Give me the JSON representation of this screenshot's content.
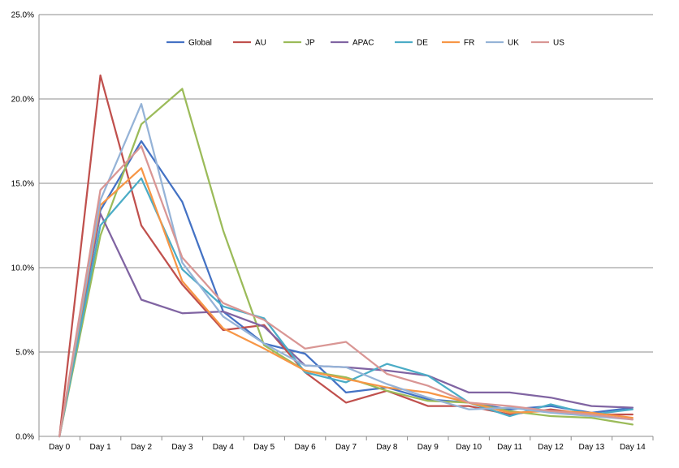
{
  "chart_data": {
    "type": "line",
    "title": "",
    "xlabel": "",
    "ylabel": "",
    "categories": [
      "Day 0",
      "Day 1",
      "Day 2",
      "Day 3",
      "Day 4",
      "Day 5",
      "Day 6",
      "Day 7",
      "Day 8",
      "Day 9",
      "Day 10",
      "Day 11",
      "Day 12",
      "Day 13",
      "Day 14"
    ],
    "y_ticks": [
      "0.0%",
      "5.0%",
      "10.0%",
      "15.0%",
      "20.0%",
      "25.0%"
    ],
    "ylim": [
      0,
      25
    ],
    "y_unit": "%",
    "grid": "horizontal",
    "legend_position": "top-inside",
    "series": [
      {
        "name": "Global",
        "color": "#4472C4",
        "values": [
          0,
          13.4,
          17.5,
          13.9,
          7.4,
          5.5,
          4.9,
          2.6,
          2.9,
          2.2,
          2.0,
          1.6,
          1.8,
          1.4,
          1.7
        ]
      },
      {
        "name": "AU",
        "color": "#C0504D",
        "values": [
          0,
          21.4,
          12.5,
          9.0,
          6.3,
          6.6,
          3.8,
          2.0,
          2.7,
          1.8,
          1.8,
          1.3,
          1.6,
          1.3,
          1.3
        ]
      },
      {
        "name": "JP",
        "color": "#9BBB59",
        "values": [
          0,
          11.9,
          18.5,
          20.6,
          12.2,
          5.4,
          3.9,
          3.5,
          2.7,
          2.1,
          2.0,
          1.5,
          1.2,
          1.1,
          0.7
        ]
      },
      {
        "name": "APAC",
        "color": "#8064A2",
        "values": [
          0,
          13.2,
          8.1,
          7.3,
          7.4,
          6.5,
          4.2,
          4.1,
          3.9,
          3.6,
          2.6,
          2.6,
          2.3,
          1.8,
          1.7
        ]
      },
      {
        "name": "DE",
        "color": "#4BACC6",
        "values": [
          0,
          12.5,
          15.3,
          9.9,
          7.7,
          7.0,
          3.8,
          3.2,
          4.3,
          3.6,
          2.0,
          1.2,
          1.9,
          1.3,
          1.6
        ]
      },
      {
        "name": "FR",
        "color": "#F79646",
        "values": [
          0,
          13.7,
          15.9,
          9.2,
          6.4,
          5.2,
          3.9,
          3.4,
          2.9,
          2.6,
          2.0,
          1.4,
          1.5,
          1.4,
          1.1
        ]
      },
      {
        "name": "UK",
        "color": "#95B3D7",
        "values": [
          0,
          14.0,
          19.7,
          10.3,
          7.1,
          5.5,
          4.2,
          4.1,
          3.1,
          2.3,
          1.6,
          1.7,
          1.4,
          1.2,
          1.0
        ]
      },
      {
        "name": "US",
        "color": "#D99694",
        "values": [
          0,
          14.6,
          17.2,
          10.6,
          7.9,
          6.9,
          5.2,
          5.6,
          3.7,
          3.0,
          2.0,
          1.8,
          1.5,
          1.3,
          1.0
        ]
      }
    ]
  }
}
